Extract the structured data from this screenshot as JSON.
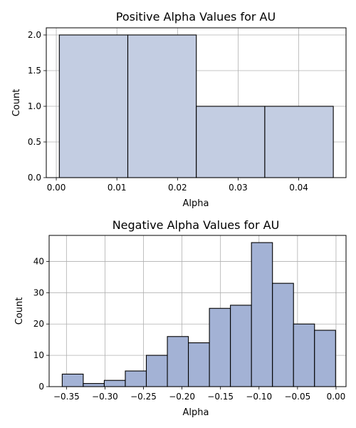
{
  "chart_data": [
    {
      "type": "bar",
      "title": "Positive Alpha Values for AU",
      "xlabel": "Alpha",
      "ylabel": "Count",
      "xlim": [
        -0.00165,
        0.0478
      ],
      "ylim": [
        0,
        2.1
      ],
      "xticks": [
        0.0,
        0.01,
        0.02,
        0.03,
        0.04
      ],
      "xtick_labels": [
        "0.00",
        "0.01",
        "0.02",
        "0.03",
        "0.04"
      ],
      "yticks": [
        0.0,
        0.5,
        1.0,
        1.5,
        2.0
      ],
      "ytick_labels": [
        "0.0",
        "0.5",
        "1.0",
        "1.5",
        "2.0"
      ],
      "bins": [
        {
          "start": 0.0005,
          "end": 0.0118,
          "count": 2
        },
        {
          "start": 0.0118,
          "end": 0.0231,
          "count": 2
        },
        {
          "start": 0.0231,
          "end": 0.0344,
          "count": 1
        },
        {
          "start": 0.0344,
          "end": 0.0457,
          "count": 1
        }
      ],
      "color": "#c3cde2",
      "grid": true
    },
    {
      "type": "bar",
      "title": "Negative Alpha Values for AU",
      "xlabel": "Alpha",
      "ylabel": "Count",
      "xlim": [
        -0.3725,
        0.013
      ],
      "ylim": [
        0,
        48.3
      ],
      "xticks": [
        -0.35,
        -0.3,
        -0.25,
        -0.2,
        -0.15,
        -0.1,
        -0.05,
        0.0
      ],
      "xtick_labels": [
        "−0.35",
        "−0.30",
        "−0.25",
        "−0.20",
        "−0.15",
        "−0.10",
        "−0.05",
        "0.00"
      ],
      "yticks": [
        0,
        10,
        20,
        30,
        40
      ],
      "ytick_labels": [
        "0",
        "10",
        "20",
        "30",
        "40"
      ],
      "bins": [
        {
          "start": -0.3555,
          "end": -0.3282,
          "count": 4
        },
        {
          "start": -0.3282,
          "end": -0.3009,
          "count": 1
        },
        {
          "start": -0.3009,
          "end": -0.2736,
          "count": 2
        },
        {
          "start": -0.2736,
          "end": -0.2463,
          "count": 5
        },
        {
          "start": -0.2463,
          "end": -0.219,
          "count": 10
        },
        {
          "start": -0.219,
          "end": -0.1917,
          "count": 16
        },
        {
          "start": -0.1917,
          "end": -0.1644,
          "count": 14
        },
        {
          "start": -0.1644,
          "end": -0.1371,
          "count": 25
        },
        {
          "start": -0.1371,
          "end": -0.1098,
          "count": 26
        },
        {
          "start": -0.1098,
          "end": -0.0825,
          "count": 46
        },
        {
          "start": -0.0825,
          "end": -0.0552,
          "count": 33
        },
        {
          "start": -0.0552,
          "end": -0.0279,
          "count": 20
        },
        {
          "start": -0.0279,
          "end": -0.0006,
          "count": 18
        }
      ],
      "color": "#a3b2d5",
      "grid": true
    }
  ]
}
